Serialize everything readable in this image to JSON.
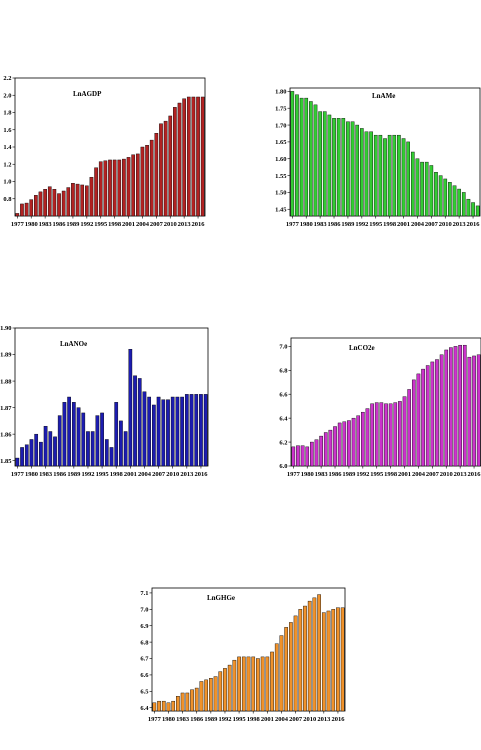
{
  "chart_data": [
    {
      "id": "gdp",
      "type": "bar",
      "title": "LnAGDP",
      "color": "#b22222",
      "x": [
        1977,
        1978,
        1979,
        1980,
        1981,
        1982,
        1983,
        1984,
        1985,
        1986,
        1987,
        1988,
        1989,
        1990,
        1991,
        1992,
        1993,
        1994,
        1995,
        1996,
        1997,
        1998,
        1999,
        2000,
        2001,
        2002,
        2003,
        2004,
        2005,
        2006,
        2007,
        2008,
        2009,
        2010,
        2011,
        2012,
        2013,
        2014,
        2015,
        2016,
        2017
      ],
      "values": [
        0.63,
        0.74,
        0.75,
        0.79,
        0.84,
        0.88,
        0.91,
        0.94,
        0.91,
        0.86,
        0.89,
        0.93,
        0.98,
        0.97,
        0.96,
        0.95,
        1.05,
        1.16,
        1.23,
        1.24,
        1.25,
        1.25,
        1.25,
        1.26,
        1.28,
        1.31,
        1.32,
        1.4,
        1.42,
        1.48,
        1.56,
        1.67,
        1.7,
        1.76,
        1.86,
        1.91,
        1.96,
        1.98,
        1.98,
        1.98,
        1.98
      ],
      "xticks": [
        "1977",
        "1980",
        "1983",
        "1986",
        "1989",
        "1992",
        "1995",
        "1998",
        "2001",
        "2004",
        "2007",
        "2010",
        "2013",
        "2016"
      ],
      "yticks": [
        "2.2",
        "2.0",
        "1.8",
        "1.6",
        "1.4",
        "1.2",
        "1.0",
        "0.8"
      ],
      "ylim": [
        0.6,
        2.2
      ]
    },
    {
      "id": "ame",
      "type": "bar",
      "title": "LnAMe",
      "color": "#33cc33",
      "x": [
        1977,
        1978,
        1979,
        1980,
        1981,
        1982,
        1983,
        1984,
        1985,
        1986,
        1987,
        1988,
        1989,
        1990,
        1991,
        1992,
        1993,
        1994,
        1995,
        1996,
        1997,
        1998,
        1999,
        2000,
        2001,
        2002,
        2003,
        2004,
        2005,
        2006,
        2007,
        2008,
        2009,
        2010,
        2011,
        2012,
        2013,
        2014,
        2015,
        2016,
        2017
      ],
      "values": [
        1.8,
        1.79,
        1.78,
        1.78,
        1.77,
        1.76,
        1.74,
        1.74,
        1.73,
        1.72,
        1.72,
        1.72,
        1.71,
        1.71,
        1.7,
        1.69,
        1.68,
        1.68,
        1.67,
        1.67,
        1.66,
        1.67,
        1.67,
        1.67,
        1.66,
        1.65,
        1.62,
        1.6,
        1.59,
        1.59,
        1.58,
        1.56,
        1.55,
        1.54,
        1.53,
        1.52,
        1.51,
        1.5,
        1.48,
        1.47,
        1.46
      ],
      "xticks": [
        "1977",
        "1980",
        "1983",
        "1986",
        "1989",
        "1992",
        "1995",
        "1998",
        "2001",
        "2004",
        "2007",
        "2010",
        "2013",
        "2016"
      ],
      "yticks": [
        "1.80",
        "1.75",
        "1.70",
        "1.65",
        "1.60",
        "1.55",
        "1.50",
        "1.45"
      ],
      "ylim": [
        1.43,
        1.81
      ]
    },
    {
      "id": "ano",
      "type": "bar",
      "title": "LnANOe",
      "color": "#1c1cb0",
      "x": [
        1977,
        1978,
        1979,
        1980,
        1981,
        1982,
        1983,
        1984,
        1985,
        1986,
        1987,
        1988,
        1989,
        1990,
        1991,
        1992,
        1993,
        1994,
        1995,
        1996,
        1997,
        1998,
        1999,
        2000,
        2001,
        2002,
        2003,
        2004,
        2005,
        2006,
        2007,
        2008,
        2009,
        2010,
        2011,
        2012,
        2013,
        2014,
        2015,
        2016,
        2017
      ],
      "values": [
        1.851,
        1.855,
        1.856,
        1.858,
        1.86,
        1.857,
        1.863,
        1.861,
        1.859,
        1.867,
        1.872,
        1.874,
        1.872,
        1.87,
        1.868,
        1.861,
        1.861,
        1.867,
        1.868,
        1.858,
        1.855,
        1.872,
        1.865,
        1.861,
        1.892,
        1.882,
        1.881,
        1.876,
        1.874,
        1.871,
        1.874,
        1.873,
        1.873,
        1.874,
        1.874,
        1.874,
        1.875,
        1.875,
        1.875,
        1.875,
        1.875
      ],
      "xticks": [
        "1977",
        "1980",
        "1983",
        "1986",
        "1989",
        "1992",
        "1995",
        "1998",
        "2001",
        "2004",
        "2007",
        "2010",
        "2013",
        "2016"
      ],
      "yticks": [
        "1.90",
        "1.89",
        "1.88",
        "1.87",
        "1.86",
        "1.85"
      ],
      "ylim": [
        1.848,
        1.9
      ]
    },
    {
      "id": "co2",
      "type": "bar",
      "title": "LnCO2e",
      "color": "#cc33cc",
      "x": [
        1977,
        1978,
        1979,
        1980,
        1981,
        1982,
        1983,
        1984,
        1985,
        1986,
        1987,
        1988,
        1989,
        1990,
        1991,
        1992,
        1993,
        1994,
        1995,
        1996,
        1997,
        1998,
        1999,
        2000,
        2001,
        2002,
        2003,
        2004,
        2005,
        2006,
        2007,
        2008,
        2009,
        2010,
        2011,
        2012,
        2013,
        2014,
        2015,
        2016,
        2017
      ],
      "values": [
        6.16,
        6.17,
        6.17,
        6.16,
        6.2,
        6.22,
        6.25,
        6.28,
        6.3,
        6.33,
        6.36,
        6.37,
        6.38,
        6.4,
        6.42,
        6.45,
        6.48,
        6.52,
        6.53,
        6.53,
        6.52,
        6.52,
        6.53,
        6.54,
        6.58,
        6.64,
        6.72,
        6.77,
        6.81,
        6.84,
        6.87,
        6.89,
        6.93,
        6.97,
        6.99,
        7.0,
        7.01,
        7.01,
        6.91,
        6.92,
        6.93
      ],
      "xticks": [
        "1977",
        "1980",
        "1983",
        "1986",
        "1989",
        "1992",
        "1995",
        "1998",
        "2001",
        "2004",
        "2007",
        "2010",
        "2013",
        "2016"
      ],
      "yticks": [
        "7.0",
        "6.8",
        "6.6",
        "6.4",
        "6.2",
        "6.0"
      ],
      "ylim": [
        6.0,
        7.07
      ]
    },
    {
      "id": "ghg",
      "type": "bar",
      "title": "LnGHGe",
      "color": "#f0922b",
      "x": [
        1977,
        1978,
        1979,
        1980,
        1981,
        1982,
        1983,
        1984,
        1985,
        1986,
        1987,
        1988,
        1989,
        1990,
        1991,
        1992,
        1993,
        1994,
        1995,
        1996,
        1997,
        1998,
        1999,
        2000,
        2001,
        2002,
        2003,
        2004,
        2005,
        2006,
        2007,
        2008,
        2009,
        2010,
        2011,
        2012,
        2013,
        2014,
        2015,
        2016,
        2017
      ],
      "values": [
        6.43,
        6.44,
        6.44,
        6.43,
        6.44,
        6.47,
        6.49,
        6.49,
        6.51,
        6.52,
        6.56,
        6.57,
        6.58,
        6.59,
        6.62,
        6.64,
        6.66,
        6.69,
        6.71,
        6.71,
        6.71,
        6.71,
        6.7,
        6.71,
        6.71,
        6.74,
        6.79,
        6.84,
        6.89,
        6.92,
        6.96,
        7.0,
        7.02,
        7.05,
        7.07,
        7.09,
        6.98,
        6.99,
        7.0,
        7.01,
        7.01
      ],
      "xticks": [
        "1977",
        "1980",
        "1983",
        "1986",
        "1989",
        "1992",
        "1995",
        "1998",
        "2001",
        "2004",
        "2007",
        "2010",
        "2013",
        "2016"
      ],
      "yticks": [
        "7.1",
        "7.0",
        "6.9",
        "6.8",
        "6.7",
        "6.6",
        "6.5",
        "6.4"
      ],
      "ylim": [
        6.38,
        7.13
      ]
    }
  ]
}
